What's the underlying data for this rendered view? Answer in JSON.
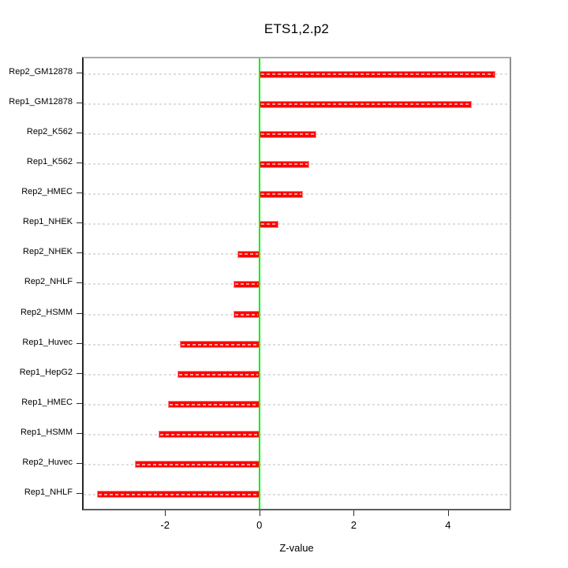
{
  "figure": {
    "background": "#ffffff"
  },
  "chart_data": {
    "type": "bar",
    "orientation": "horizontal",
    "title": "ETS1,2.p2",
    "xlabel": "Z-value",
    "ylabel": "",
    "categories": [
      "Rep2_GM12878",
      "Rep1_GM12878",
      "Rep2_K562",
      "Rep1_K562",
      "Rep2_HMEC",
      "Rep1_NHEK",
      "Rep2_NHEK",
      "Rep2_NHLF",
      "Rep2_HSMM",
      "Rep1_Huvec",
      "Rep1_HepG2",
      "Rep1_HMEC",
      "Rep1_HSMM",
      "Rep2_Huvec",
      "Rep1_NHLF"
    ],
    "values": [
      5.0,
      4.5,
      1.2,
      1.05,
      0.92,
      0.4,
      -0.47,
      -0.55,
      -0.55,
      -1.68,
      -1.74,
      -1.94,
      -2.13,
      -2.64,
      -3.45
    ],
    "xlim": [
      -3.76,
      5.34
    ],
    "xticks": [
      -2,
      0,
      2,
      4
    ],
    "grid": "dotted horizontal guide per category, full plot width",
    "legend": "none",
    "zero_reference_line": 0,
    "colors": {
      "bar": "#ff0000",
      "bar_edge": "#ff8a8a",
      "zero_line": "#00ee00",
      "grid_line": "#dedede",
      "box_border": "#8f8f8f",
      "text": "#000000"
    }
  }
}
